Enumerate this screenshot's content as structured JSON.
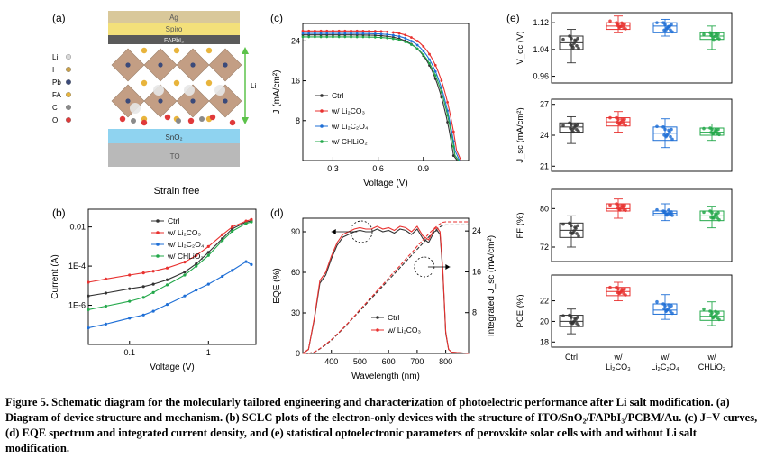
{
  "panel_labels": [
    "(a)",
    "(b)",
    "(c)",
    "(d)",
    "(e)"
  ],
  "panel_a": {
    "layers": {
      "top1": "Ag",
      "top2": "Spiro",
      "top3": "FAPbI₃",
      "sno2": "SnO₂",
      "ito": "ITO"
    },
    "legend": [
      {
        "label": "Li",
        "color": "#d9d9d9"
      },
      {
        "label": "I",
        "color": "#c9a04a"
      },
      {
        "label": "Pb",
        "color": "#3b4a7a"
      },
      {
        "label": "FA",
        "color": "#e8b43c"
      },
      {
        "label": "C",
        "color": "#8a8a8a"
      },
      {
        "label": "O",
        "color": "#e03a3a"
      }
    ],
    "side_label": "Li",
    "subtitle": "Strain free"
  },
  "colors": {
    "ctrl": "#333333",
    "li2co3": "#e8312f",
    "li2c2o4": "#1f6fd6",
    "chlio2": "#23a84a"
  },
  "chart_data": [
    {
      "panel": "b",
      "type": "line",
      "xlabel": "Voltage (V)",
      "ylabel": "Current (A)",
      "xscale": "log",
      "yscale": "log",
      "xlim": [
        0.03,
        4.0
      ],
      "ylim": [
        1e-08,
        0.08
      ],
      "xticks": [
        {
          "v": 0.1,
          "label": "0.1"
        },
        {
          "v": 1,
          "label": "1"
        }
      ],
      "yticks": [
        {
          "v": 1e-06,
          "label": "1E-6"
        },
        {
          "v": 0.0001,
          "label": "1E-4"
        },
        {
          "v": 0.01,
          "label": "0.01"
        }
      ],
      "legend_position": "top-right",
      "series": [
        {
          "name": "Ctrl",
          "key": "ctrl",
          "x": [
            0.03,
            0.05,
            0.1,
            0.15,
            0.2,
            0.3,
            0.5,
            0.7,
            1.0,
            1.5,
            2.0,
            3.0,
            3.5
          ],
          "y": [
            3e-06,
            4.2e-06,
            7e-06,
            9e-06,
            1.2e-05,
            2e-05,
            5e-05,
            0.00013,
            0.0005,
            0.0025,
            0.008,
            0.018,
            0.02
          ]
        },
        {
          "name": "w/ Li₂CO₃",
          "key": "li2co3",
          "x": [
            0.03,
            0.05,
            0.1,
            0.15,
            0.2,
            0.3,
            0.5,
            0.7,
            1.0,
            1.5,
            2.0,
            3.0,
            3.5
          ],
          "y": [
            1.5e-05,
            2.2e-05,
            3.5e-05,
            4.5e-05,
            5.5e-05,
            8e-05,
            0.00016,
            0.00035,
            0.001,
            0.004,
            0.01,
            0.02,
            0.024
          ]
        },
        {
          "name": "w/ Li₂C₂O₄",
          "key": "li2c2o4",
          "x": [
            0.03,
            0.05,
            0.1,
            0.15,
            0.2,
            0.3,
            0.5,
            0.7,
            1.0,
            1.5,
            2.0,
            3.0,
            3.5
          ],
          "y": [
            7e-08,
            1.1e-07,
            2.2e-07,
            3.2e-07,
            5e-07,
            1.1e-06,
            3e-06,
            6e-06,
            1.2e-05,
            3e-05,
            6e-05,
            0.00017,
            0.00012
          ]
        },
        {
          "name": "w/ CHLiO₂",
          "key": "chlio2",
          "x": [
            0.03,
            0.05,
            0.1,
            0.15,
            0.2,
            0.3,
            0.5,
            0.7,
            1.0,
            1.5,
            2.0,
            3.0,
            3.5
          ],
          "y": [
            6e-07,
            9e-07,
            1.6e-06,
            2.5e-06,
            4.5e-06,
            1.1e-05,
            3.5e-05,
            0.0001,
            0.00035,
            0.002,
            0.006,
            0.015,
            0.018
          ]
        }
      ]
    },
    {
      "panel": "c",
      "type": "line",
      "xlabel": "Voltage (V)",
      "ylabel": "J (mA/cm²)",
      "xlim": [
        0.1,
        1.2
      ],
      "ylim": [
        0,
        27.5
      ],
      "xticks": [
        {
          "v": 0.3,
          "label": "0.3"
        },
        {
          "v": 0.6,
          "label": "0.6"
        },
        {
          "v": 0.9,
          "label": "0.9"
        }
      ],
      "yticks": [
        {
          "v": 8,
          "label": "8"
        },
        {
          "v": 16,
          "label": "16"
        },
        {
          "v": 24,
          "label": "24"
        }
      ],
      "legend_position": "center-left",
      "series": [
        {
          "name": "Ctrl",
          "key": "ctrl",
          "jsc": 25.2,
          "voc": 1.105,
          "n": 1.6
        },
        {
          "name": "w/ Li₂CO₃",
          "key": "li2co3",
          "jsc": 26.0,
          "voc": 1.13,
          "n": 1.5
        },
        {
          "name": "w/ Li₂C₂O₄",
          "key": "li2c2o4",
          "jsc": 25.5,
          "voc": 1.12,
          "n": 1.55
        },
        {
          "name": "w/ CHLiO₂",
          "key": "chlio2",
          "jsc": 24.8,
          "voc": 1.115,
          "n": 1.55
        }
      ]
    },
    {
      "panel": "d",
      "type": "line",
      "xlabel": "Wavelength (nm)",
      "ylabel": "EQE (%)",
      "ylabel_right": "Integrated J_sc (mA/cm²)",
      "xlim": [
        300,
        880
      ],
      "ylim": [
        0,
        100
      ],
      "ylim_right": [
        0,
        26.5
      ],
      "xticks": [
        {
          "v": 400,
          "label": "400"
        },
        {
          "v": 500,
          "label": "500"
        },
        {
          "v": 600,
          "label": "600"
        },
        {
          "v": 700,
          "label": "700"
        },
        {
          "v": 800,
          "label": "800"
        }
      ],
      "yticks": [
        {
          "v": 0,
          "label": "0"
        },
        {
          "v": 30,
          "label": "30"
        },
        {
          "v": 60,
          "label": "60"
        },
        {
          "v": 90,
          "label": "90"
        }
      ],
      "yticks_right": [
        {
          "v": 8,
          "label": "8"
        },
        {
          "v": 16,
          "label": "16"
        },
        {
          "v": 24,
          "label": "24"
        }
      ],
      "legend_position": "bottom-center",
      "series": [
        {
          "name": "Ctrl",
          "key": "ctrl",
          "x": [
            300,
            320,
            340,
            360,
            380,
            400,
            420,
            440,
            460,
            480,
            500,
            520,
            540,
            560,
            580,
            600,
            620,
            640,
            660,
            680,
            700,
            720,
            740,
            760,
            770,
            780,
            790,
            800,
            810,
            820,
            880
          ],
          "y": [
            0,
            3,
            25,
            52,
            58,
            70,
            80,
            86,
            88,
            90,
            91,
            90,
            90,
            92,
            90,
            91,
            89,
            92,
            91,
            88,
            92,
            85,
            82,
            90,
            91,
            88,
            60,
            15,
            3,
            1,
            0
          ],
          "integrated": [
            0,
            0.02,
            0.25,
            0.9,
            1.7,
            2.6,
            3.7,
            4.8,
            6.0,
            7.2,
            8.4,
            9.6,
            10.8,
            12.0,
            13.2,
            14.4,
            15.6,
            16.8,
            18.0,
            19.2,
            20.4,
            21.6,
            22.8,
            23.9,
            24.4,
            24.8,
            25.1,
            25.2,
            25.2,
            25.2,
            25.2
          ]
        },
        {
          "name": "w/ Li₂CO₃",
          "key": "li2co3",
          "x": [
            300,
            320,
            340,
            360,
            380,
            400,
            420,
            440,
            460,
            480,
            500,
            520,
            540,
            560,
            580,
            600,
            620,
            640,
            660,
            680,
            700,
            720,
            740,
            760,
            770,
            780,
            790,
            800,
            810,
            820,
            880
          ],
          "y": [
            0,
            3,
            26,
            54,
            60,
            72,
            82,
            88,
            90,
            92,
            93,
            92,
            92,
            94,
            92,
            93,
            91,
            94,
            93,
            90,
            94,
            87,
            84,
            92,
            93,
            90,
            62,
            16,
            3,
            1,
            0
          ],
          "integrated": [
            0,
            0.02,
            0.26,
            0.95,
            1.8,
            2.7,
            3.8,
            4.9,
            6.1,
            7.3,
            8.6,
            9.8,
            11.0,
            12.3,
            13.5,
            14.8,
            16.0,
            17.2,
            18.5,
            19.7,
            21.0,
            22.2,
            23.4,
            24.5,
            25.0,
            25.4,
            25.7,
            25.8,
            25.8,
            25.8,
            25.8
          ]
        }
      ],
      "annotations": []
    },
    {
      "panel": "e",
      "type": "box",
      "categories": [
        "Ctrl",
        "w/\nLi₂CO₃",
        "w/\nLi₂C₂O₄",
        "w/\nCHLiO₂"
      ],
      "subplots": [
        {
          "ylabel": "V_oc (V)",
          "ylim": [
            0.94,
            1.15
          ],
          "yticks": [
            {
              "v": 0.96,
              "label": "0.96"
            },
            {
              "v": 1.04,
              "label": "1.04"
            },
            {
              "v": 1.12,
              "label": "1.12"
            }
          ],
          "boxes": [
            {
              "min": 1.0,
              "q1": 1.04,
              "median": 1.06,
              "q3": 1.08,
              "max": 1.1
            },
            {
              "min": 1.09,
              "q1": 1.1,
              "median": 1.11,
              "q3": 1.12,
              "max": 1.14
            },
            {
              "min": 1.08,
              "q1": 1.09,
              "median": 1.11,
              "q3": 1.12,
              "max": 1.13
            },
            {
              "min": 1.04,
              "q1": 1.07,
              "median": 1.08,
              "q3": 1.09,
              "max": 1.11
            }
          ]
        },
        {
          "ylabel": "J_sc (mA/cm²)",
          "ylim": [
            20.5,
            27.5
          ],
          "yticks": [
            {
              "v": 21,
              "label": "21"
            },
            {
              "v": 24,
              "label": "24"
            },
            {
              "v": 27,
              "label": "27"
            }
          ],
          "boxes": [
            {
              "min": 23.2,
              "q1": 24.3,
              "median": 24.8,
              "q3": 25.2,
              "max": 25.8
            },
            {
              "min": 24.3,
              "q1": 24.9,
              "median": 25.3,
              "q3": 25.7,
              "max": 26.3
            },
            {
              "min": 22.8,
              "q1": 23.5,
              "median": 24.2,
              "q3": 24.8,
              "max": 25.6
            },
            {
              "min": 23.5,
              "q1": 24.0,
              "median": 24.3,
              "q3": 24.7,
              "max": 25.1
            }
          ]
        },
        {
          "ylabel": "FF (%)",
          "ylim": [
            69,
            84
          ],
          "yticks": [
            {
              "v": 72,
              "label": "72"
            },
            {
              "v": 80,
              "label": "80"
            }
          ],
          "boxes": [
            {
              "min": 72,
              "q1": 74,
              "median": 75.5,
              "q3": 77,
              "max": 78.5
            },
            {
              "min": 78,
              "q1": 79.5,
              "median": 80,
              "q3": 81,
              "max": 82
            },
            {
              "min": 77.5,
              "q1": 78.5,
              "median": 79,
              "q3": 79.5,
              "max": 81
            },
            {
              "min": 76,
              "q1": 77.5,
              "median": 78.5,
              "q3": 79.5,
              "max": 80.5
            }
          ]
        },
        {
          "ylabel": "PCE (%)",
          "ylim": [
            17.5,
            24.5
          ],
          "yticks": [
            {
              "v": 18,
              "label": "18"
            },
            {
              "v": 20,
              "label": "20"
            },
            {
              "v": 22,
              "label": "22"
            }
          ],
          "boxes": [
            {
              "min": 18.8,
              "q1": 19.5,
              "median": 20.0,
              "q3": 20.6,
              "max": 21.2
            },
            {
              "min": 22.0,
              "q1": 22.5,
              "median": 22.9,
              "q3": 23.3,
              "max": 23.8
            },
            {
              "min": 20.2,
              "q1": 20.7,
              "median": 21.1,
              "q3": 21.7,
              "max": 22.6
            },
            {
              "min": 19.6,
              "q1": 20.1,
              "median": 20.5,
              "q3": 21.0,
              "max": 21.9
            }
          ]
        }
      ]
    }
  ],
  "caption": {
    "lead": "Figure 5. Schematic diagram for the molecularly tailored engineering and characterization of photoelectric performance after Li salt modification.",
    "body": "(a) Diagram of device structure and mechanism. (b) SCLC plots of the electron-only devices with the structure of ITO/SnO₂/FAPbI₃/PCBM/Au. (c) J−V curves, (d) EQE spectrum and integrated current density, and (e) statistical optoelectronic parameters of perovskite solar cells with and without Li salt modification."
  }
}
